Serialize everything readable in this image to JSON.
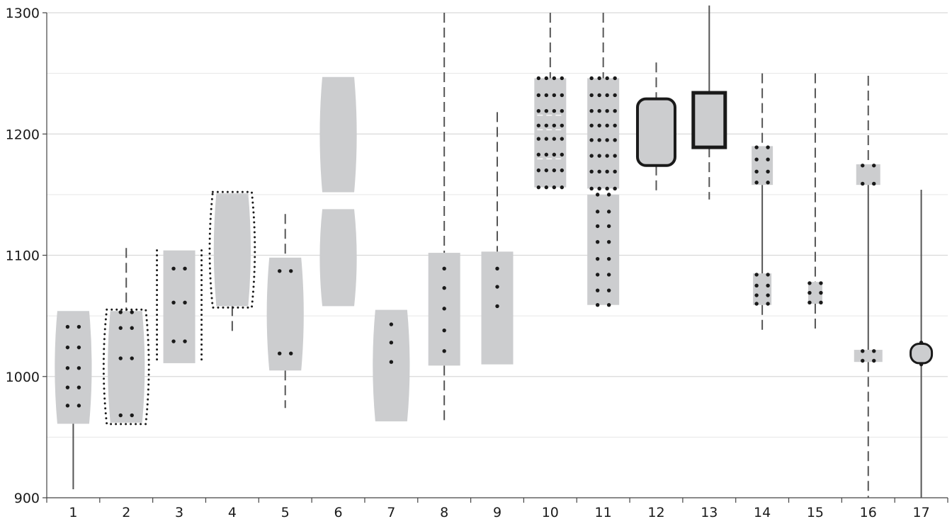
{
  "chart_data": {
    "type": "box",
    "title": "",
    "xlabel": "",
    "ylabel": "",
    "ylim": [
      900,
      1300
    ],
    "yticks": [
      900,
      1000,
      1100,
      1200,
      1300
    ],
    "yticks_labels": [
      "900",
      "1000",
      "1100",
      "1200",
      "1300"
    ],
    "minor_gridlines": [
      950,
      1050,
      1150,
      1250
    ],
    "grid": true,
    "legend": "none",
    "colors": {
      "box_fill": "#cccdcf",
      "dark": "#1a1a1a",
      "whisker": "#555555",
      "grid": "#d9d9d9"
    },
    "categories": [
      "1",
      "2",
      "3",
      "4",
      "5",
      "6",
      "7",
      "8",
      "9",
      "10",
      "11",
      "12",
      "13",
      "14",
      "15",
      "16",
      "17"
    ],
    "boxes": [
      {
        "category": "1",
        "style": "lens",
        "q1": 961,
        "q3": 1054,
        "whisker_low": 907,
        "whisker_high": null,
        "whisker_dash": false,
        "dot_rows": [
          976,
          991,
          1007,
          1024,
          1041
        ],
        "dot_cols": 2
      },
      {
        "category": "2",
        "style": "lens",
        "q1": 962,
        "q3": 1054,
        "whisker_low": null,
        "whisker_high": 1106,
        "whisker_dash": true,
        "dot_rows": [
          968,
          1015,
          1040,
          1053
        ],
        "dot_cols": 2,
        "dotted_outline": true
      },
      {
        "category": "3",
        "style": "rect",
        "q1": 1011,
        "q3": 1104,
        "whisker_low": null,
        "whisker_high": null,
        "whisker_dash": false,
        "dot_rows": [
          1029,
          1061,
          1089
        ],
        "dot_cols": 2,
        "dotted_sides": true
      },
      {
        "category": "4",
        "style": "lens",
        "q1": 1058,
        "q3": 1151,
        "whisker_low": 1036,
        "whisker_high": null,
        "whisker_dash": true,
        "dot_rows": [],
        "dot_cols": 0,
        "dotted_outline": true
      },
      {
        "category": "5",
        "style": "lens",
        "q1": 1005,
        "q3": 1098,
        "whisker_low": 974,
        "whisker_high": 1134,
        "whisker_dash": true,
        "dot_rows": [
          1019,
          1087
        ],
        "dot_cols": 2
      },
      {
        "category": "6",
        "style": "lens",
        "q1": 1152,
        "q3": 1247,
        "whisker_low": null,
        "whisker_high": null,
        "whisker_dash": false,
        "dot_rows": [],
        "dot_cols": 0,
        "second_box": {
          "q1": 1058,
          "q3": 1138
        }
      },
      {
        "category": "7",
        "style": "lens",
        "q1": 963,
        "q3": 1055,
        "whisker_low": null,
        "whisker_high": null,
        "whisker_dash": false,
        "dot_rows": [
          1012,
          1028,
          1043
        ],
        "dot_cols": 1
      },
      {
        "category": "8",
        "style": "rect",
        "q1": 1009,
        "q3": 1102,
        "whisker_low": 964,
        "whisker_high": 1300,
        "whisker_dash": true,
        "dot_rows": [
          1021,
          1038,
          1056,
          1073,
          1089
        ],
        "dot_cols": 1
      },
      {
        "category": "9",
        "style": "rect",
        "q1": 1010,
        "q3": 1103,
        "whisker_low": null,
        "whisker_high": 1218,
        "whisker_dash": true,
        "dot_rows": [
          1058,
          1074,
          1089
        ],
        "dot_cols": 1
      },
      {
        "category": "10",
        "style": "rect",
        "q1": 1156,
        "q3": 1246,
        "whisker_low": null,
        "whisker_high": 1300,
        "whisker_dash": true,
        "dot_rows": [
          1156,
          1170,
          1183,
          1196,
          1207,
          1219,
          1232,
          1246
        ],
        "dot_cols": 4
      },
      {
        "category": "11",
        "style": "rect",
        "q1": 1155,
        "q3": 1246,
        "whisker_low": null,
        "whisker_high": 1300,
        "whisker_dash": true,
        "dot_rows": [
          1155,
          1169,
          1182,
          1195,
          1207,
          1219,
          1232,
          1246
        ],
        "dot_cols": 4,
        "second_box": {
          "q1": 1059,
          "q3": 1150,
          "dot_rows": [
            1059,
            1071,
            1084,
            1097,
            1111,
            1124,
            1136,
            1150
          ],
          "dot_cols": 2
        }
      },
      {
        "category": "12",
        "style": "rounded",
        "q1": 1174,
        "q3": 1229,
        "whisker_low": 1150,
        "whisker_high": 1259,
        "whisker_dash": true,
        "dot_rows": [],
        "dot_cols": 0,
        "outline": 4
      },
      {
        "category": "13",
        "style": "rect",
        "q1": 1189,
        "q3": 1234,
        "whisker_low": 1146,
        "whisker_high": 1306,
        "whisker_dash": "mixed",
        "dot_rows": [],
        "dot_cols": 0,
        "outline": 5
      },
      {
        "category": "14",
        "style": "rect",
        "q1": 1158,
        "q3": 1190,
        "whisker_low": 1036,
        "whisker_high": 1250,
        "whisker_dash": true,
        "dot_rows": [
          1160,
          1169,
          1179,
          1189
        ],
        "dot_cols": 2,
        "second_box": {
          "q1": 1059,
          "q3": 1085,
          "dot_rows": [
            1060,
            1067,
            1075,
            1084
          ],
          "dot_cols": 2
        }
      },
      {
        "category": "15",
        "style": "rect",
        "q1": 1060,
        "q3": 1078,
        "whisker_low": 1036,
        "whisker_high": 1250,
        "whisker_dash": true,
        "dot_rows": [
          1061,
          1069,
          1077
        ],
        "dot_cols": 2
      },
      {
        "category": "16",
        "style": "rect",
        "q1": 1158,
        "q3": 1175,
        "whisker_low": 900,
        "whisker_high": 1248,
        "whisker_dash": true,
        "dot_rows": [
          1159,
          1174
        ],
        "dot_cols": 2,
        "second_box": {
          "q1": 1012,
          "q3": 1022,
          "dot_rows": [
            1013,
            1021
          ],
          "dot_cols": 2
        }
      },
      {
        "category": "17",
        "style": "rounded",
        "q1": 1011,
        "q3": 1027,
        "whisker_low": 900,
        "whisker_high": 1154,
        "whisker_dash": false,
        "dot_rows": [
          1010,
          1028
        ],
        "dot_cols": 1,
        "outline": 3
      }
    ]
  }
}
